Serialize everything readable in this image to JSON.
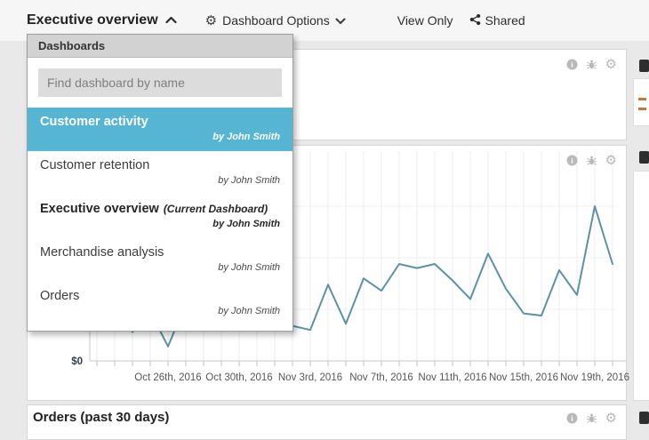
{
  "topbar": {
    "title": "Executive overview",
    "dashboard_options_label": "Dashboard Options",
    "view_only_label": "View Only",
    "shared_label": "Shared"
  },
  "dropdown": {
    "header": "Dashboards",
    "search_placeholder": "Find dashboard by name",
    "items": [
      {
        "name": "Customer activity",
        "byline": "by John Smith"
      },
      {
        "name": "Customer retention",
        "byline": "by John Smith"
      },
      {
        "name": "Executive overview",
        "current_suffix": "(Current Dashboard)",
        "byline": "by John Smith"
      },
      {
        "name": "Merchandise analysis",
        "byline": "by John Smith"
      },
      {
        "name": "Orders",
        "byline": "by John Smith"
      }
    ]
  },
  "panels": {
    "orders_title": "Orders (past 30 days)"
  },
  "icons": {
    "gear_glyph": "⚙",
    "info_label": "i"
  },
  "colors": {
    "accent_blue": "#57b5d4",
    "chart_line": "#5d92a4",
    "orange_fragment": "#c07a3c"
  },
  "chart_data": {
    "type": "line",
    "y_axis_visible_label": "$0",
    "x_tick_labels": [
      "Oct 26th, 2016",
      "Oct 30th, 2016",
      "Nov 3rd, 2016",
      "Nov 7th, 2016",
      "Nov 11th, 2016",
      "Nov 15th, 2016",
      "Nov 19th, 2016"
    ],
    "label_start_index": 4,
    "label_every": 4,
    "values": [
      20,
      26,
      14,
      24,
      7,
      28,
      22,
      33,
      26,
      31,
      24,
      17,
      15,
      37,
      18,
      40,
      34,
      47,
      45,
      47,
      39,
      30,
      52,
      35,
      23,
      22,
      44,
      32,
      75,
      47
    ],
    "units": "relative 0-100 (dollar scale hidden behind dropdown)",
    "ylim": [
      0,
      100
    ],
    "grid": true,
    "line_color": "#5d92a4",
    "legend": "none"
  }
}
